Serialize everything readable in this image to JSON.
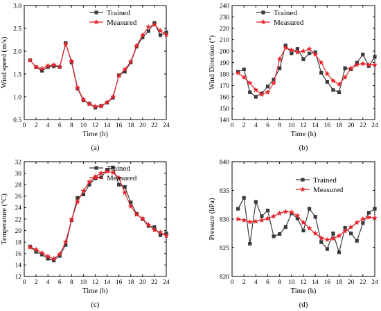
{
  "chart_data": [
    {
      "type": "line",
      "panel_label": "(a)",
      "xlabel": "Time (h)",
      "ylabel": "Wind speed (m/s)",
      "xlim": [
        0,
        24
      ],
      "ylim": [
        0.5,
        3.0
      ],
      "xticks": [
        0,
        2,
        4,
        6,
        8,
        10,
        12,
        14,
        16,
        18,
        20,
        22,
        24
      ],
      "yticks": [
        0.5,
        1.0,
        1.5,
        2.0,
        2.5,
        3.0
      ],
      "ytick_labels": [
        "0.5",
        "1.0",
        "1.5",
        "2.0",
        "2.5",
        "3.0"
      ],
      "legend_position": "top-right",
      "x": [
        1,
        2,
        3,
        4,
        5,
        6,
        7,
        8,
        9,
        10,
        11,
        12,
        13,
        14,
        15,
        16,
        17,
        18,
        19,
        20,
        21,
        22,
        23,
        24
      ],
      "series": [
        {
          "name": "Trained",
          "color": "#3a3a3a",
          "marker": "square",
          "values": [
            1.8,
            1.65,
            1.57,
            1.65,
            1.67,
            1.65,
            2.18,
            1.75,
            1.18,
            0.92,
            0.85,
            0.76,
            0.8,
            0.87,
            0.98,
            1.47,
            1.55,
            1.75,
            2.1,
            2.3,
            2.44,
            2.62,
            2.35,
            2.41
          ]
        },
        {
          "name": "Measured",
          "color": "#e8232a",
          "marker": "star",
          "values": [
            1.8,
            1.65,
            1.62,
            1.68,
            1.7,
            1.66,
            2.15,
            1.78,
            1.2,
            0.94,
            0.84,
            0.79,
            0.79,
            0.88,
            1.0,
            1.46,
            1.6,
            1.77,
            2.12,
            2.35,
            2.53,
            2.58,
            2.45,
            2.36
          ]
        }
      ]
    },
    {
      "type": "line",
      "panel_label": "(b)",
      "xlabel": "Time (h)",
      "ylabel": "Wind Direction (°)",
      "xlim": [
        0,
        24
      ],
      "ylim": [
        140,
        240
      ],
      "xticks": [
        0,
        2,
        4,
        6,
        8,
        10,
        12,
        14,
        16,
        18,
        20,
        22,
        24
      ],
      "yticks": [
        140,
        150,
        160,
        170,
        180,
        190,
        200,
        210,
        220,
        230,
        240
      ],
      "ytick_labels": [
        "140",
        "150",
        "160",
        "170",
        "180",
        "190",
        "200",
        "210",
        "220",
        "230",
        "240"
      ],
      "legend_position": "top-right",
      "x": [
        1,
        2,
        3,
        4,
        5,
        6,
        7,
        8,
        9,
        10,
        11,
        12,
        13,
        14,
        15,
        16,
        17,
        18,
        19,
        20,
        21,
        22,
        23,
        24
      ],
      "series": [
        {
          "name": "Trained",
          "color": "#3a3a3a",
          "marker": "square",
          "values": [
            182,
            184,
            164,
            160,
            163,
            169,
            175,
            185,
            205,
            198,
            202,
            193,
            198,
            199,
            181,
            173,
            166,
            164,
            185,
            184,
            190,
            197,
            187,
            195
          ]
        },
        {
          "name": "Measured",
          "color": "#e8232a",
          "marker": "star",
          "values": [
            181,
            177,
            172,
            166,
            162,
            164,
            172,
            193,
            203,
            201,
            199,
            200,
            202,
            197,
            190,
            180,
            174,
            171,
            177,
            185,
            188,
            189,
            188,
            188
          ]
        }
      ]
    },
    {
      "type": "line",
      "panel_label": "(c)",
      "xlabel": "Time (h)",
      "ylabel": "Temperature (°C)",
      "xlim": [
        0,
        24
      ],
      "ylim": [
        12,
        32
      ],
      "xticks": [
        0,
        2,
        4,
        6,
        8,
        10,
        12,
        14,
        16,
        18,
        20,
        22,
        24
      ],
      "yticks": [
        12,
        14,
        16,
        18,
        20,
        22,
        24,
        26,
        28,
        30,
        32
      ],
      "ytick_labels": [
        "12",
        "14",
        "16",
        "18",
        "20",
        "22",
        "24",
        "26",
        "28",
        "30",
        "32"
      ],
      "legend_position": "top-right",
      "x": [
        1,
        2,
        3,
        4,
        5,
        6,
        7,
        8,
        9,
        10,
        11,
        12,
        13,
        14,
        15,
        16,
        17,
        18,
        19,
        20,
        21,
        22,
        23,
        24
      ],
      "series": [
        {
          "name": "Trained",
          "color": "#3a3a3a",
          "marker": "square",
          "values": [
            17.2,
            16.3,
            15.8,
            15.1,
            14.8,
            15.6,
            17.5,
            21.8,
            25.7,
            26.3,
            28.0,
            29.1,
            29.3,
            30.6,
            31.0,
            28.0,
            27.6,
            24.9,
            22.9,
            22.0,
            20.8,
            20.6,
            19.2,
            19.5
          ]
        },
        {
          "name": "Measured",
          "color": "#e8232a",
          "marker": "star",
          "values": [
            17.1,
            16.7,
            16.1,
            15.5,
            15.1,
            15.9,
            18.0,
            21.9,
            25.0,
            26.9,
            28.5,
            29.4,
            30.0,
            30.3,
            30.1,
            29.2,
            26.6,
            24.2,
            22.8,
            22.1,
            21.0,
            20.1,
            19.7,
            19.1
          ]
        }
      ]
    },
    {
      "type": "line",
      "panel_label": "(d)",
      "xlabel": "Time (h)",
      "ylabel": "Pressure (hPa)",
      "xlim": [
        0,
        24
      ],
      "ylim": [
        820,
        840
      ],
      "xticks": [
        0,
        2,
        4,
        6,
        8,
        10,
        12,
        14,
        16,
        18,
        20,
        22,
        24
      ],
      "yticks": [
        820,
        825,
        830,
        835,
        840
      ],
      "ytick_labels": [
        "820",
        "825",
        "830",
        "835",
        "840"
      ],
      "legend_position": "top-right",
      "x": [
        1,
        2,
        3,
        4,
        5,
        6,
        7,
        8,
        9,
        10,
        11,
        12,
        13,
        14,
        15,
        16,
        17,
        18,
        19,
        20,
        21,
        22,
        23,
        24
      ],
      "series": [
        {
          "name": "Trained",
          "color": "#3a3a3a",
          "marker": "square",
          "values": [
            831.8,
            833.7,
            825.7,
            833.0,
            830.5,
            831.5,
            827.0,
            827.4,
            828.6,
            831.0,
            830.1,
            828.0,
            831.8,
            830.4,
            826.0,
            824.8,
            827.5,
            824.2,
            828.5,
            827.5,
            826.2,
            829.3,
            831.1,
            831.8
          ]
        },
        {
          "name": "Measured",
          "color": "#e8232a",
          "marker": "star",
          "values": [
            830.0,
            829.8,
            829.5,
            829.6,
            829.8,
            830.1,
            830.5,
            831.0,
            831.3,
            831.2,
            830.6,
            829.4,
            828.4,
            827.5,
            826.7,
            826.4,
            826.6,
            827.1,
            827.9,
            828.6,
            829.4,
            830.0,
            830.3,
            830.2
          ]
        }
      ]
    }
  ]
}
